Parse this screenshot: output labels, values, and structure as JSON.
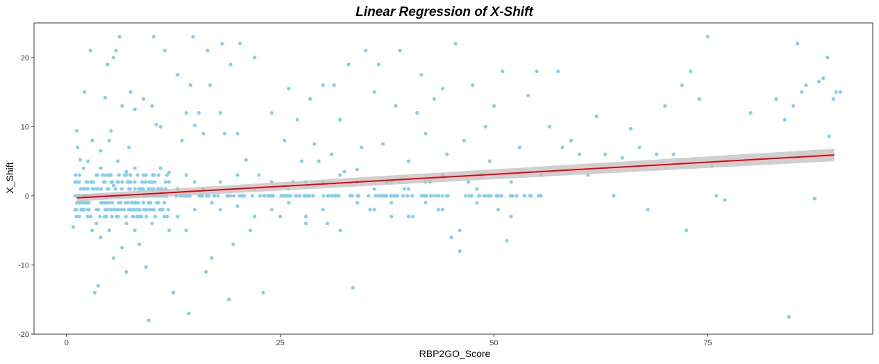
{
  "chart_data": {
    "type": "scatter",
    "title": "Linear Regression of X-Shift",
    "xlabel": "RBP2GO_Score",
    "ylabel": "X_Shift",
    "xlim": [
      -3.8,
      94.3
    ],
    "ylim": [
      -20,
      25
    ],
    "x_ticks": [
      0,
      25,
      50,
      75
    ],
    "y_ticks": [
      -20,
      -10,
      0,
      10,
      20
    ],
    "grid": false,
    "legend": "none",
    "point_color": "#87CEEB",
    "line_color": "#E8000B",
    "band_color": "#BFBFBF",
    "regression": {
      "x": [
        1.2,
        89.8
      ],
      "y": [
        -0.3,
        5.9
      ],
      "band_halfwidth": [
        0.5,
        0.9
      ]
    },
    "points": [
      [
        1.2,
        9.4
      ],
      [
        1.3,
        7.0
      ],
      [
        1.6,
        5.2
      ],
      [
        2.1,
        15.0
      ],
      [
        2.8,
        21.0
      ],
      [
        3.0,
        8.0
      ],
      [
        3.3,
        -14.0
      ],
      [
        3.7,
        -13.0
      ],
      [
        4.0,
        6.5
      ],
      [
        4.5,
        14.2
      ],
      [
        4.8,
        19.0
      ],
      [
        5.0,
        8.0
      ],
      [
        5.2,
        9.4
      ],
      [
        5.5,
        20.0
      ],
      [
        5.8,
        21.0
      ],
      [
        6.2,
        23.0
      ],
      [
        6.5,
        13.0
      ],
      [
        7.0,
        -11.0
      ],
      [
        7.3,
        7.0
      ],
      [
        7.5,
        15.0
      ],
      [
        8.0,
        12.5
      ],
      [
        8.5,
        -7.0
      ],
      [
        9.0,
        14.0
      ],
      [
        9.3,
        -10.3
      ],
      [
        9.6,
        -18.0
      ],
      [
        10.0,
        13.0
      ],
      [
        10.2,
        23.0
      ],
      [
        10.5,
        10.3
      ],
      [
        11.0,
        10.0
      ],
      [
        11.5,
        21.0
      ],
      [
        12.0,
        3.4
      ],
      [
        12.5,
        -14.0
      ],
      [
        13.0,
        17.5
      ],
      [
        13.5,
        8.0
      ],
      [
        14.0,
        12.0
      ],
      [
        14.3,
        -17.0
      ],
      [
        14.5,
        16.0
      ],
      [
        14.8,
        23.0
      ],
      [
        15.0,
        10.2
      ],
      [
        15.5,
        12.0
      ],
      [
        16.0,
        9.0
      ],
      [
        16.3,
        -11.0
      ],
      [
        16.5,
        21.0
      ],
      [
        16.8,
        16.0
      ],
      [
        17.0,
        -9.0
      ],
      [
        18.0,
        12.0
      ],
      [
        18.2,
        22.0
      ],
      [
        18.5,
        9.0
      ],
      [
        19.0,
        -15.0
      ],
      [
        19.2,
        19.0
      ],
      [
        19.5,
        -7.0
      ],
      [
        20.0,
        9.0
      ],
      [
        20.3,
        22.0
      ],
      [
        21.0,
        5.2
      ],
      [
        21.5,
        -5.0
      ],
      [
        22.0,
        20.0
      ],
      [
        22.5,
        3.0
      ],
      [
        23.0,
        -14.0
      ],
      [
        24.0,
        12.0
      ],
      [
        25.0,
        -3.0
      ],
      [
        25.5,
        8.0
      ],
      [
        26.0,
        15.5
      ],
      [
        26.5,
        2.0
      ],
      [
        27.0,
        11.0
      ],
      [
        27.5,
        5.0
      ],
      [
        28.0,
        -4.0
      ],
      [
        28.5,
        14.0
      ],
      [
        29.0,
        7.5
      ],
      [
        29.5,
        5.0
      ],
      [
        30.0,
        16.0
      ],
      [
        30.5,
        -4.0
      ],
      [
        31.0,
        6.0
      ],
      [
        31.3,
        16.0
      ],
      [
        32.0,
        11.0
      ],
      [
        32.5,
        3.5
      ],
      [
        33.0,
        19.0
      ],
      [
        33.5,
        -13.3
      ],
      [
        34.0,
        3.8
      ],
      [
        34.5,
        7.0
      ],
      [
        35.0,
        21.0
      ],
      [
        35.5,
        -2.0
      ],
      [
        36.0,
        15.0
      ],
      [
        36.5,
        19.0
      ],
      [
        37.0,
        7.5
      ],
      [
        37.5,
        2.0
      ],
      [
        38.0,
        -3.0
      ],
      [
        38.5,
        13.0
      ],
      [
        39.0,
        21.0
      ],
      [
        39.5,
        1.0
      ],
      [
        40.0,
        5.0
      ],
      [
        40.5,
        -3.0
      ],
      [
        41.0,
        12.0
      ],
      [
        41.5,
        17.5
      ],
      [
        42.0,
        9.0
      ],
      [
        42.5,
        2.0
      ],
      [
        43.0,
        14.0
      ],
      [
        43.5,
        -2.0
      ],
      [
        44.0,
        15.5
      ],
      [
        44.5,
        6.0
      ],
      [
        45.0,
        -6.0
      ],
      [
        45.5,
        22.0
      ],
      [
        46.0,
        -5.0
      ],
      [
        46.5,
        8.0
      ],
      [
        47.0,
        2.0
      ],
      [
        47.5,
        16.0
      ],
      [
        48.0,
        -1.0
      ],
      [
        48.5,
        3.0
      ],
      [
        49.0,
        10.0
      ],
      [
        49.5,
        5.0
      ],
      [
        50.0,
        13.0
      ],
      [
        50.5,
        -2.0
      ],
      [
        51.0,
        18.0
      ],
      [
        51.5,
        -6.5
      ],
      [
        52.0,
        -3.0
      ],
      [
        53.0,
        7.0
      ],
      [
        54.0,
        14.5
      ],
      [
        55.0,
        18.0
      ],
      [
        55.5,
        3.0
      ],
      [
        56.5,
        10.0
      ],
      [
        57.5,
        18.0
      ],
      [
        58.0,
        7.0
      ],
      [
        59.0,
        8.0
      ],
      [
        60.0,
        6.0
      ],
      [
        61.0,
        3.0
      ],
      [
        62.0,
        11.5
      ],
      [
        63.0,
        6.0
      ],
      [
        64.0,
        0.0
      ],
      [
        65.0,
        5.5
      ],
      [
        66.0,
        9.7
      ],
      [
        67.0,
        7.0
      ],
      [
        68.0,
        -2.0
      ],
      [
        69.0,
        6.0
      ],
      [
        70.0,
        13.0
      ],
      [
        71.0,
        6.0
      ],
      [
        72.0,
        16.0
      ],
      [
        72.5,
        -5.0
      ],
      [
        73.0,
        18.0
      ],
      [
        74.0,
        14.0
      ],
      [
        75.0,
        23.0
      ],
      [
        75.5,
        4.3
      ],
      [
        76.0,
        0.0
      ],
      [
        77.0,
        -0.6
      ],
      [
        80.0,
        12.0
      ],
      [
        83.0,
        14.0
      ],
      [
        84.0,
        11.0
      ],
      [
        84.5,
        -17.5
      ],
      [
        85.0,
        13.0
      ],
      [
        85.5,
        22.0
      ],
      [
        86.0,
        15.0
      ],
      [
        86.5,
        16.0
      ],
      [
        87.5,
        -0.4
      ],
      [
        88.0,
        16.5
      ],
      [
        88.5,
        17.0
      ],
      [
        89.0,
        20.0
      ],
      [
        89.2,
        8.6
      ],
      [
        89.7,
        14.0
      ],
      [
        90.0,
        15.0
      ],
      [
        90.5,
        15.0
      ],
      [
        0.8,
        -4.5
      ],
      [
        1.0,
        -2.0
      ],
      [
        1.5,
        -3.0
      ],
      [
        2.0,
        -1.0
      ],
      [
        2.5,
        -2.0
      ],
      [
        3.0,
        -5.0
      ],
      [
        3.5,
        -4.0
      ],
      [
        4.0,
        -6.0
      ],
      [
        4.5,
        -3.0
      ],
      [
        5.0,
        -5.0
      ],
      [
        5.5,
        -9.0
      ],
      [
        6.0,
        -3.0
      ],
      [
        6.5,
        -7.5
      ],
      [
        7.0,
        -4.0
      ],
      [
        7.5,
        -2.0
      ],
      [
        8.0,
        -5.0
      ],
      [
        8.5,
        -3.0
      ],
      [
        9.0,
        -1.0
      ],
      [
        10.0,
        -4.0
      ],
      [
        11.0,
        -2.0
      ],
      [
        12.0,
        -5.0
      ],
      [
        13.0,
        -3.0
      ],
      [
        14.0,
        -5.0
      ],
      [
        15.0,
        -2.0
      ],
      [
        17.0,
        -1.0
      ],
      [
        18.0,
        -2.0
      ],
      [
        20.0,
        -1.5
      ],
      [
        22.0,
        -3.0
      ],
      [
        24.0,
        -2.0
      ],
      [
        26.0,
        -1.0
      ],
      [
        28.0,
        -3.0
      ],
      [
        30.0,
        -2.0
      ],
      [
        32.0,
        -5.0
      ],
      [
        34.0,
        -1.0
      ],
      [
        36.0,
        -2.0
      ],
      [
        38.0,
        -1.0
      ],
      [
        40.0,
        -3.0
      ],
      [
        42.0,
        -1.0
      ],
      [
        44.0,
        -2.0
      ],
      [
        46.0,
        -8.0
      ],
      [
        1.0,
        2.0
      ],
      [
        1.5,
        3.0
      ],
      [
        2.0,
        4.0
      ],
      [
        2.5,
        5.0
      ],
      [
        3.0,
        2.0
      ],
      [
        3.5,
        3.0
      ],
      [
        4.0,
        4.0
      ],
      [
        4.5,
        2.0
      ],
      [
        5.0,
        3.0
      ],
      [
        5.5,
        1.5
      ],
      [
        6.0,
        5.0
      ],
      [
        6.5,
        2.0
      ],
      [
        7.0,
        3.5
      ],
      [
        7.5,
        2.0
      ],
      [
        8.0,
        4.0
      ],
      [
        8.5,
        1.0
      ],
      [
        9.0,
        3.0
      ],
      [
        10.0,
        2.0
      ],
      [
        11.0,
        4.0
      ],
      [
        12.0,
        2.0
      ],
      [
        13.0,
        1.0
      ],
      [
        14.0,
        3.0
      ],
      [
        15.0,
        2.0
      ],
      [
        16.0,
        1.0
      ],
      [
        18.0,
        2.0
      ],
      [
        20.0,
        3.0
      ],
      [
        22.0,
        1.0
      ],
      [
        24.0,
        2.0
      ],
      [
        26.0,
        1.0
      ],
      [
        28.0,
        2.0
      ],
      [
        30.0,
        2.0
      ],
      [
        32.0,
        3.0
      ],
      [
        34.0,
        2.0
      ],
      [
        36.0,
        1.0
      ],
      [
        38.0,
        2.0
      ],
      [
        40.0,
        1.0
      ],
      [
        42.0,
        2.0
      ],
      [
        44.0,
        3.0
      ],
      [
        48.0,
        1.0
      ],
      [
        52.0,
        2.0
      ]
    ],
    "zero_band_range": [
      1.0,
      56.0
    ],
    "dense_cluster_range": [
      1.0,
      12.0
    ]
  }
}
